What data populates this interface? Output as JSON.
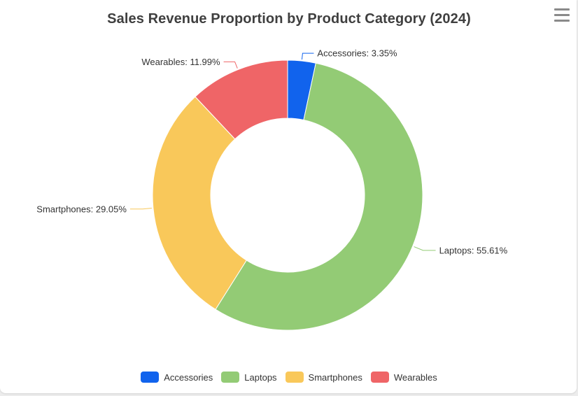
{
  "chart_data": {
    "type": "pie",
    "variant": "donut",
    "title": "Sales Revenue Proportion by Product Category (2024)",
    "legend_position": "bottom",
    "slices": [
      {
        "name": "Accessories",
        "value": 3.35,
        "label": "Accessories: 3.35%",
        "color": "#1163ed"
      },
      {
        "name": "Laptops",
        "value": 55.61,
        "label": "Laptops: 55.61%",
        "color": "#93cb75"
      },
      {
        "name": "Smartphones",
        "value": 29.05,
        "label": "Smartphones: 29.05%",
        "color": "#f9c85a"
      },
      {
        "name": "Wearables",
        "value": 11.99,
        "label": "Wearables: 11.99%",
        "color": "#ef6567"
      }
    ]
  },
  "toolbar": {
    "menu_icon": "hamburger-menu-icon"
  }
}
